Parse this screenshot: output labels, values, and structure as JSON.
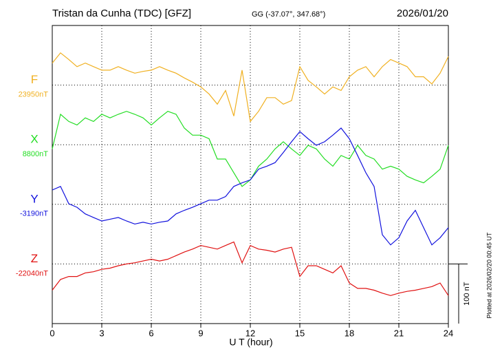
{
  "chart_data": {
    "type": "line",
    "title": "Tristan da Cunha (TDC)  [GFZ]",
    "subtitle": "GG (-37.07°, 347.68°)",
    "date": "2026/01/20",
    "note": "Plotted at 2026/02/20 00:45 UT",
    "xlabel": "U T (hour)",
    "xlim": [
      0,
      24
    ],
    "xticks": [
      0,
      3,
      6,
      9,
      12,
      15,
      18,
      21,
      24
    ],
    "grid": true,
    "scale_bar": {
      "value": 100,
      "label": "100 nT"
    },
    "x": [
      0,
      0.5,
      1,
      1.5,
      2,
      2.5,
      3,
      3.5,
      4,
      4.5,
      5,
      5.5,
      6,
      6.5,
      7,
      7.5,
      8,
      8.5,
      9,
      9.5,
      10,
      10.5,
      11,
      11.5,
      12,
      12.5,
      13,
      13.5,
      14,
      14.5,
      15,
      15.5,
      16,
      16.5,
      17,
      17.5,
      18,
      18.5,
      19,
      19.5,
      20,
      20.5,
      21,
      21.5,
      22,
      22.5,
      23,
      23.5,
      24
    ],
    "series": [
      {
        "name": "F",
        "color": "#f0b020",
        "baseline": {
          "value": 23950,
          "label": "23950nT"
        },
        "values": [
          23987,
          24004,
          23993,
          23981,
          23987,
          23981,
          23975,
          23975,
          23981,
          23975,
          23970,
          23973,
          23975,
          23981,
          23975,
          23970,
          23962,
          23955,
          23947,
          23935,
          23918,
          23941,
          23898,
          23975,
          23889,
          23906,
          23929,
          23929,
          23918,
          23924,
          23981,
          23958,
          23947,
          23935,
          23947,
          23941,
          23964,
          23975,
          23981,
          23964,
          23981,
          23993,
          23987,
          23981,
          23964,
          23964,
          23952,
          23970,
          23998
        ]
      },
      {
        "name": "X",
        "color": "#22dd22",
        "baseline": {
          "value": 8800,
          "label": "8800nT"
        },
        "values": [
          8793,
          8851,
          8839,
          8833,
          8845,
          8839,
          8851,
          8845,
          8851,
          8856,
          8851,
          8845,
          8833,
          8845,
          8856,
          8851,
          8828,
          8816,
          8816,
          8810,
          8776,
          8776,
          8753,
          8730,
          8741,
          8764,
          8776,
          8793,
          8805,
          8793,
          8782,
          8799,
          8793,
          8776,
          8764,
          8782,
          8776,
          8799,
          8782,
          8776,
          8759,
          8764,
          8759,
          8747,
          8741,
          8736,
          8747,
          8759,
          8799
        ]
      },
      {
        "name": "Y",
        "color": "#1010dd",
        "baseline": {
          "value": -3190,
          "label": "-3190nT"
        },
        "values": [
          -3166,
          -3160,
          -3189,
          -3195,
          -3206,
          -3212,
          -3218,
          -3215,
          -3212,
          -3218,
          -3223,
          -3220,
          -3223,
          -3220,
          -3218,
          -3206,
          -3200,
          -3195,
          -3189,
          -3183,
          -3183,
          -3177,
          -3160,
          -3154,
          -3149,
          -3131,
          -3126,
          -3120,
          -3103,
          -3085,
          -3068,
          -3080,
          -3091,
          -3085,
          -3074,
          -3062,
          -3080,
          -3108,
          -3137,
          -3160,
          -3241,
          -3258,
          -3246,
          -3218,
          -3200,
          -3229,
          -3258,
          -3246,
          -3229
        ]
      },
      {
        "name": "Z",
        "color": "#e01010",
        "baseline": {
          "value": -22040,
          "label": "-22040nT"
        },
        "values": [
          -22084,
          -22066,
          -22061,
          -22061,
          -22055,
          -22053,
          -22049,
          -22047,
          -22043,
          -22040,
          -22038,
          -22035,
          -22032,
          -22035,
          -22032,
          -22026,
          -22020,
          -22015,
          -22009,
          -22012,
          -22015,
          -22009,
          -22003,
          -22038,
          -22009,
          -22015,
          -22017,
          -22020,
          -22015,
          -22012,
          -22061,
          -22043,
          -22043,
          -22049,
          -22055,
          -22043,
          -22072,
          -22081,
          -22081,
          -22084,
          -22089,
          -22093,
          -22089,
          -22086,
          -22084,
          -22081,
          -22078,
          -22072,
          -22093
        ]
      }
    ]
  }
}
